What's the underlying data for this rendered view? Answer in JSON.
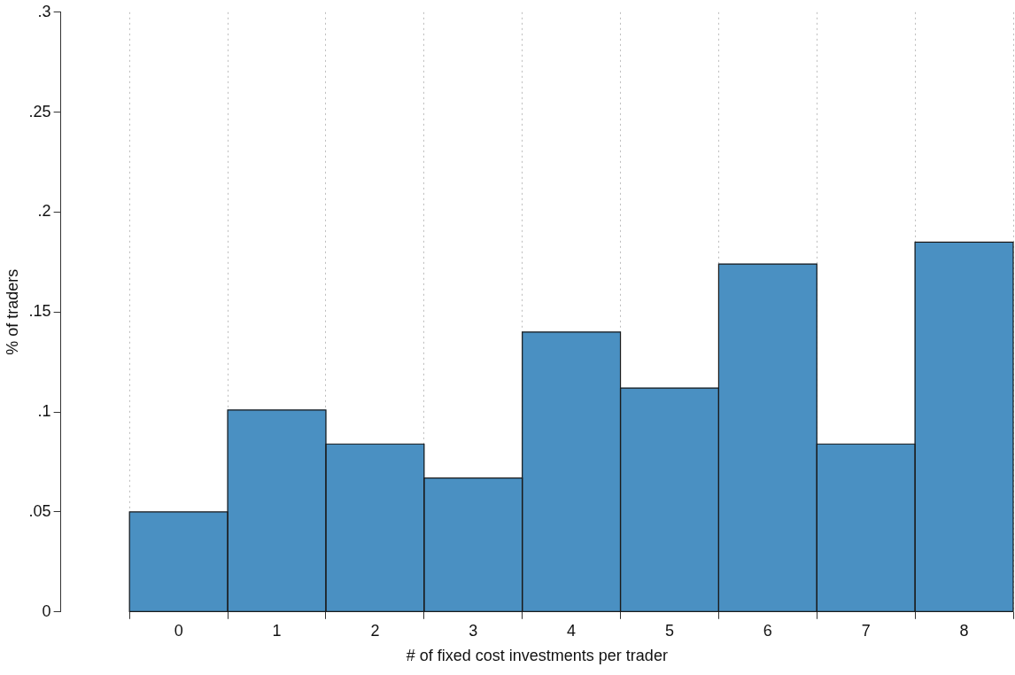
{
  "chart_data": {
    "type": "histogram",
    "xlabel": "# of fixed cost investments per trader",
    "ylabel": "% of traders",
    "bins": [
      -0.5,
      0.5,
      1.5,
      2.5,
      3.5,
      4.5,
      5.5,
      6.5,
      7.5,
      8.5
    ],
    "values": [
      0.05,
      0.101,
      0.084,
      0.067,
      0.14,
      0.112,
      0.174,
      0.084,
      0.185
    ],
    "color": "#4a90c2",
    "xlim": [
      -1.2,
      8.5
    ],
    "xticks": [
      0,
      1,
      2,
      3,
      4,
      5,
      6,
      7,
      8
    ],
    "ylim": [
      0,
      0.3
    ],
    "yticks": [
      0,
      {
        "value": 0.05,
        "label": ".05"
      },
      {
        "value": 0.1,
        "label": ".1"
      },
      {
        "value": 0.15,
        "label": ".15"
      },
      {
        "value": 0.2,
        "label": ".2"
      },
      {
        "value": 0.25,
        "label": ".25"
      },
      {
        "value": 0.3,
        "label": ".3"
      }
    ],
    "grid": "x"
  }
}
